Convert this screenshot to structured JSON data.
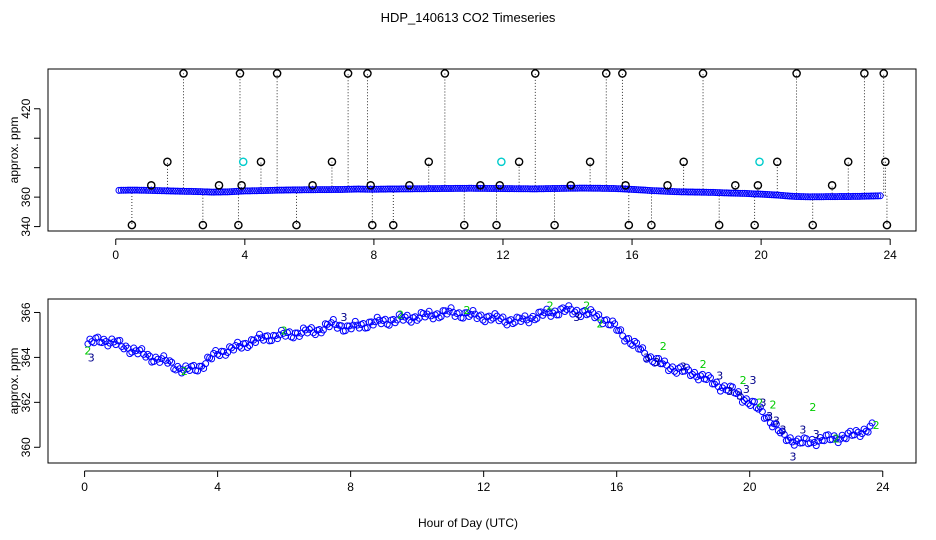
{
  "figure": {
    "title": "HDP_140613  CO2 Timeseries",
    "xlabel": "Hour of Day (UTC)"
  },
  "colors": {
    "axis": "#000000",
    "black_pts": "#000000",
    "blue_pts": "#0000ff",
    "cyan_pts": "#00cccc",
    "green_pts": "#00cc00",
    "navy_pts": "#00008b"
  },
  "chart_data": [
    {
      "type": "scatter",
      "title": "",
      "xlabel": "",
      "ylabel": "approx. ppm",
      "xlim": [
        -2.1,
        24.8
      ],
      "ylim": [
        337,
        447
      ],
      "xticks": [
        0,
        4,
        8,
        12,
        16,
        20,
        24
      ],
      "yticks": [
        340,
        360,
        380,
        400,
        420
      ],
      "ytick_labels": [
        "340",
        "360",
        "",
        "",
        "420"
      ],
      "grid": false,
      "series": [
        {
          "name": "continuous_ppm",
          "color": "blue_pts",
          "x": [
            0.1,
            0.5,
            1.0,
            1.5,
            2.0,
            2.5,
            3.0,
            3.5,
            4.0,
            4.5,
            5.0,
            5.5,
            6.0,
            6.5,
            7.0,
            7.5,
            7.9,
            8.5,
            9.0,
            9.5,
            10.0,
            10.5,
            11.0,
            11.5,
            12.0,
            12.5,
            13.0,
            13.5,
            14.0,
            14.5,
            15.0,
            15.5,
            15.9,
            16.5,
            17.0,
            17.5,
            18.0,
            18.5,
            19.0,
            19.5,
            19.8,
            20.1,
            20.5,
            21.0,
            21.5,
            22.0,
            22.5,
            23.0,
            23.7
          ],
          "y": [
            364.6,
            364.8,
            364.6,
            364.3,
            364.0,
            363.8,
            363.4,
            363.6,
            364.2,
            364.4,
            364.7,
            364.9,
            365.0,
            365.1,
            365.2,
            365.5,
            365.3,
            365.5,
            365.6,
            365.7,
            365.8,
            365.9,
            366.0,
            365.9,
            365.8,
            365.7,
            365.6,
            365.8,
            366.0,
            366.1,
            366.0,
            365.8,
            365.4,
            364.6,
            364.0,
            363.6,
            363.4,
            363.2,
            362.8,
            362.5,
            362.2,
            361.9,
            361.4,
            360.5,
            360.2,
            360.3,
            360.4,
            360.5,
            360.9
          ]
        },
        {
          "name": "flask_samples",
          "color": "black_pts",
          "x": [
            0.5,
            1.1,
            1.6,
            2.1,
            2.7,
            3.2,
            3.8,
            3.9,
            3.85,
            4.5,
            5.0,
            5.6,
            6.1,
            6.7,
            7.2,
            7.8,
            7.9,
            7.95,
            8.6,
            9.1,
            9.7,
            10.2,
            10.8,
            11.3,
            11.8,
            11.9,
            12.5,
            13.0,
            13.6,
            14.1,
            14.7,
            15.2,
            15.7,
            15.8,
            15.9,
            16.6,
            17.1,
            17.6,
            18.2,
            18.7,
            19.2,
            19.8,
            19.9,
            20.5,
            21.1,
            21.6,
            22.2,
            22.7,
            23.2,
            23.8,
            23.85,
            23.9
          ],
          "y": [
            341,
            368,
            384,
            444,
            341,
            368,
            341,
            368,
            444,
            384,
            444,
            341,
            368,
            384,
            444,
            444,
            368,
            341,
            341,
            368,
            384,
            444,
            341,
            368,
            341,
            368,
            384,
            444,
            341,
            368,
            384,
            444,
            444,
            368,
            341,
            341,
            368,
            384,
            444,
            341,
            368,
            341,
            368,
            384,
            444,
            341,
            368,
            384,
            444,
            444,
            384,
            341
          ]
        },
        {
          "name": "flagged",
          "color": "cyan_pts",
          "x": [
            3.95,
            11.95,
            19.95
          ],
          "y": [
            384,
            384,
            384
          ]
        }
      ]
    },
    {
      "type": "scatter",
      "title": "",
      "xlabel": "Hour of Day (UTC)",
      "ylabel": "approx. ppm",
      "xlim": [
        -1.1,
        25.0
      ],
      "ylim": [
        359.3,
        366.6
      ],
      "xticks": [
        0,
        4,
        8,
        12,
        16,
        20,
        24
      ],
      "yticks": [
        360,
        362,
        364,
        366
      ],
      "grid": false,
      "series": [
        {
          "name": "ppm_circles",
          "color": "blue_pts",
          "x": [
            0.1,
            0.5,
            1.0,
            1.5,
            2.0,
            2.5,
            3.0,
            3.5,
            4.0,
            4.5,
            5.0,
            5.5,
            6.0,
            6.5,
            7.0,
            7.5,
            7.9,
            8.5,
            9.0,
            9.5,
            10.0,
            10.5,
            11.0,
            11.5,
            12.0,
            12.5,
            13.0,
            13.5,
            14.0,
            14.5,
            15.0,
            15.5,
            15.9,
            16.5,
            17.0,
            17.5,
            18.0,
            18.5,
            19.0,
            19.5,
            19.8,
            20.1,
            20.5,
            21.0,
            21.5,
            22.0,
            22.5,
            23.0,
            23.7
          ],
          "y": [
            364.6,
            364.8,
            364.6,
            364.3,
            364.0,
            363.8,
            363.4,
            363.6,
            364.2,
            364.4,
            364.7,
            364.9,
            365.0,
            365.1,
            365.2,
            365.5,
            365.3,
            365.5,
            365.6,
            365.7,
            365.8,
            365.9,
            366.0,
            365.9,
            365.8,
            365.7,
            365.6,
            365.8,
            366.0,
            366.1,
            366.0,
            365.8,
            365.4,
            364.6,
            364.0,
            363.6,
            363.4,
            363.2,
            362.8,
            362.5,
            362.2,
            361.9,
            361.4,
            360.5,
            360.2,
            360.3,
            360.4,
            360.5,
            360.9
          ]
        },
        {
          "name": "level_2",
          "color": "green_pts",
          "symbol": "2",
          "points": [
            [
              0.1,
              364.3
            ],
            [
              3.0,
              363.4
            ],
            [
              6.0,
              365.2
            ],
            [
              9.5,
              365.9
            ],
            [
              11.5,
              366.1
            ],
            [
              14.0,
              366.3
            ],
            [
              15.1,
              366.3
            ],
            [
              15.5,
              365.5
            ],
            [
              17.4,
              364.5
            ],
            [
              18.6,
              363.7
            ],
            [
              19.8,
              363.0
            ],
            [
              20.3,
              362.0
            ],
            [
              20.7,
              361.9
            ],
            [
              21.9,
              361.8
            ],
            [
              22.6,
              360.4
            ],
            [
              23.8,
              361.0
            ]
          ]
        },
        {
          "name": "level_3",
          "color": "navy_pts",
          "symbol": "3",
          "points": [
            [
              0.2,
              364.0
            ],
            [
              7.8,
              365.8
            ],
            [
              14.8,
              365.8
            ],
            [
              16.9,
              364.0
            ],
            [
              17.2,
              363.8
            ],
            [
              18.0,
              363.6
            ],
            [
              19.1,
              363.2
            ],
            [
              19.4,
              362.5
            ],
            [
              19.7,
              362.3
            ],
            [
              19.9,
              362.6
            ],
            [
              20.1,
              363.0
            ],
            [
              20.4,
              362.0
            ],
            [
              20.6,
              361.4
            ],
            [
              20.8,
              361.2
            ],
            [
              21.0,
              360.8
            ],
            [
              21.3,
              359.6
            ],
            [
              21.6,
              360.8
            ],
            [
              22.0,
              360.6
            ]
          ]
        }
      ]
    }
  ]
}
